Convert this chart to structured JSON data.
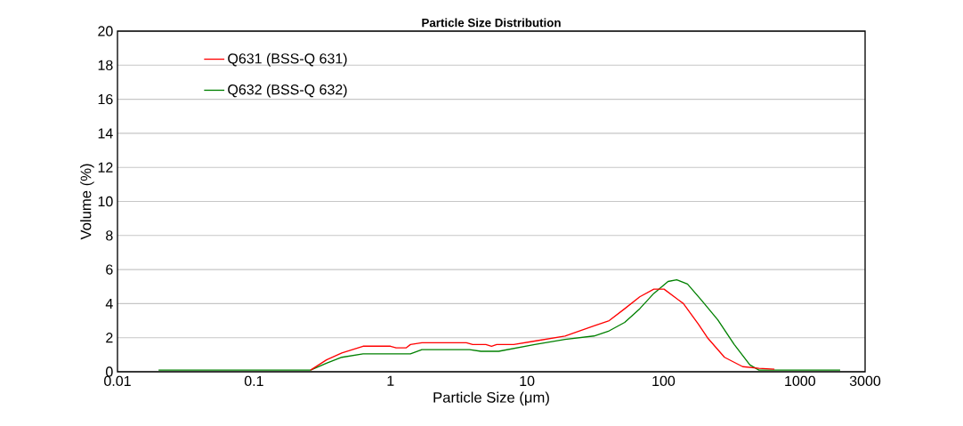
{
  "chart_data": {
    "type": "line",
    "title": "Particle Size Distribution",
    "xlabel": "Particle Size (μm)",
    "ylabel": "Volume (%)",
    "log": "x",
    "grid": "y",
    "legend": "top left",
    "marker": "none",
    "line_style": "solid",
    "xlim": [
      0.01,
      3000
    ],
    "ylim": [
      0,
      20
    ],
    "xticks": [
      0.01,
      0.1,
      1,
      10,
      100,
      1000,
      3000
    ],
    "yticks": [
      0,
      2,
      4,
      6,
      8,
      10,
      12,
      14,
      16,
      18,
      20
    ],
    "series": [
      {
        "name": "Q631 (BSS-Q 631)",
        "color": "#ff0000",
        "x": [
          0.26,
          0.34,
          0.44,
          0.63,
          1.0,
          1.1,
          1.3,
          1.4,
          1.7,
          3.6,
          4.0,
          5.0,
          5.5,
          6.0,
          8.0,
          11.4,
          19,
          31,
          40,
          52,
          67,
          85,
          101,
          140,
          180,
          210,
          280,
          380,
          500,
          650
        ],
        "values": [
          0.1,
          0.7,
          1.1,
          1.5,
          1.5,
          1.4,
          1.4,
          1.6,
          1.7,
          1.7,
          1.6,
          1.6,
          1.5,
          1.6,
          1.6,
          1.8,
          2.1,
          2.7,
          3.0,
          3.7,
          4.4,
          4.85,
          4.85,
          4.0,
          2.8,
          2.0,
          0.85,
          0.3,
          0.2,
          0.15
        ]
      },
      {
        "name": "Q632 (BSS-Q 632)",
        "color": "#008000",
        "x": [
          0.02,
          0.26,
          0.34,
          0.44,
          0.63,
          1.4,
          1.7,
          3.8,
          4.6,
          6.2,
          11.4,
          19,
          31,
          40,
          52,
          67,
          85,
          108,
          125,
          150,
          190,
          250,
          330,
          430,
          500,
          1970
        ],
        "values": [
          0.1,
          0.1,
          0.5,
          0.85,
          1.05,
          1.05,
          1.3,
          1.3,
          1.2,
          1.2,
          1.6,
          1.9,
          2.1,
          2.4,
          2.9,
          3.7,
          4.6,
          5.3,
          5.4,
          5.15,
          4.2,
          3.05,
          1.6,
          0.4,
          0.1,
          0.1
        ]
      }
    ]
  }
}
